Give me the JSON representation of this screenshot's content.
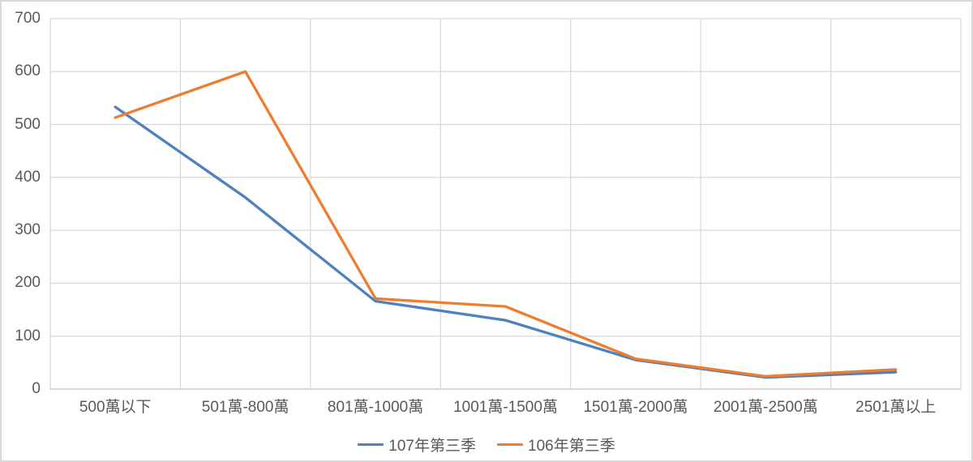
{
  "chart_data": {
    "type": "line",
    "title": "",
    "xlabel": "",
    "ylabel": "",
    "categories": [
      "500萬以下",
      "501萬-800萬",
      "801萬-1000萬",
      "1001萬-1500萬",
      "1501萬-2000萬",
      "2001萬-2500萬",
      "2501萬以上"
    ],
    "series": [
      {
        "name": "107年第三季",
        "color": "#4F81BD",
        "values": [
          533,
          362,
          166,
          130,
          55,
          22,
          32
        ]
      },
      {
        "name": "106年第三季",
        "color": "#ED7D31",
        "values": [
          513,
          600,
          171,
          156,
          57,
          24,
          37
        ]
      }
    ],
    "ylim": [
      0,
      700
    ],
    "yticks": [
      0,
      100,
      200,
      300,
      400,
      500,
      600,
      700
    ],
    "grid": true,
    "legend_position": "bottom"
  },
  "colors": {
    "background": "#FFFFFF",
    "frame_border": "#D9D9D9",
    "gridline": "#D9D9D9",
    "axis_line": "#BFBFBF",
    "tick_label": "#595959"
  }
}
